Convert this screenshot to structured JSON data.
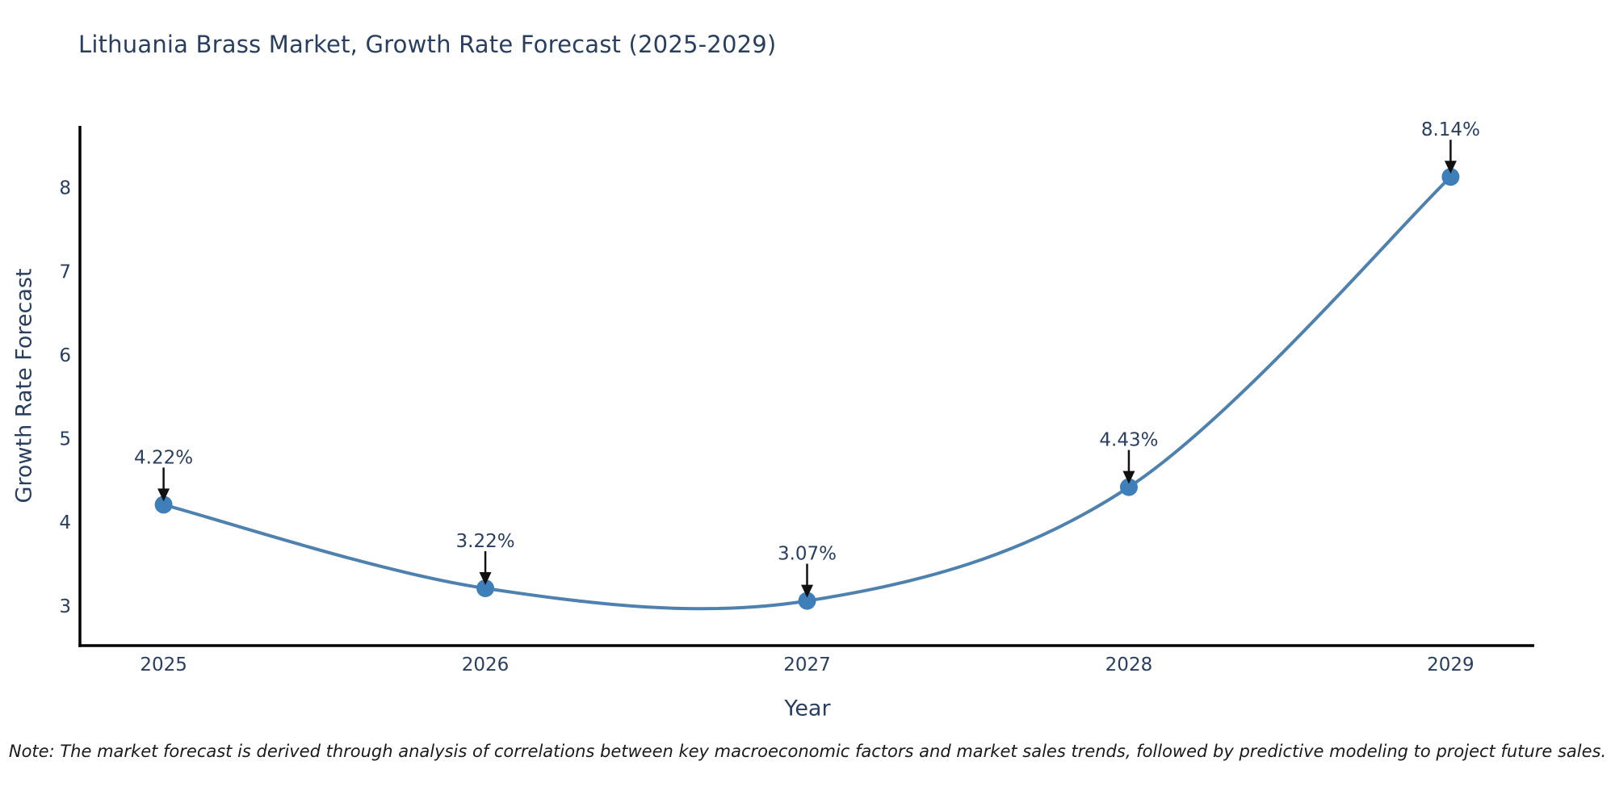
{
  "title": "Lithuania Brass Market, Growth Rate Forecast (2025-2029)",
  "note": "Note: The market forecast is derived through analysis of correlations between key macroeconomic factors and market sales trends, followed by predictive modeling to project future sales.",
  "chart_data": {
    "type": "line",
    "title": "Lithuania Brass Market, Growth Rate Forecast (2025-2029)",
    "xlabel": "Year",
    "ylabel": "Growth Rate Forecast",
    "x": [
      2025,
      2026,
      2027,
      2028,
      2029
    ],
    "x_tick_labels": [
      "2025",
      "2026",
      "2027",
      "2028",
      "2029"
    ],
    "y_ticks": [
      3,
      4,
      5,
      6,
      7,
      8
    ],
    "series": [
      {
        "name": "Growth Rate Forecast",
        "values": [
          4.22,
          3.22,
          3.07,
          4.43,
          8.14
        ],
        "point_labels": [
          "4.22%",
          "3.22%",
          "3.07%",
          "4.43%",
          "8.14%"
        ]
      }
    ],
    "xlim": [
      2024.74,
      2029.26
    ],
    "ylim": [
      2.535,
      8.75
    ],
    "line_shape": "spline",
    "grid": false,
    "legend_position": "none",
    "colors": {
      "line": "#4e81ad",
      "marker": "#3e7fba",
      "axis": "#000000",
      "text": "#2a3f5f",
      "annotation_arrow": "#111111",
      "note_text": "#1a1a1a",
      "background": "#ffffff"
    }
  }
}
